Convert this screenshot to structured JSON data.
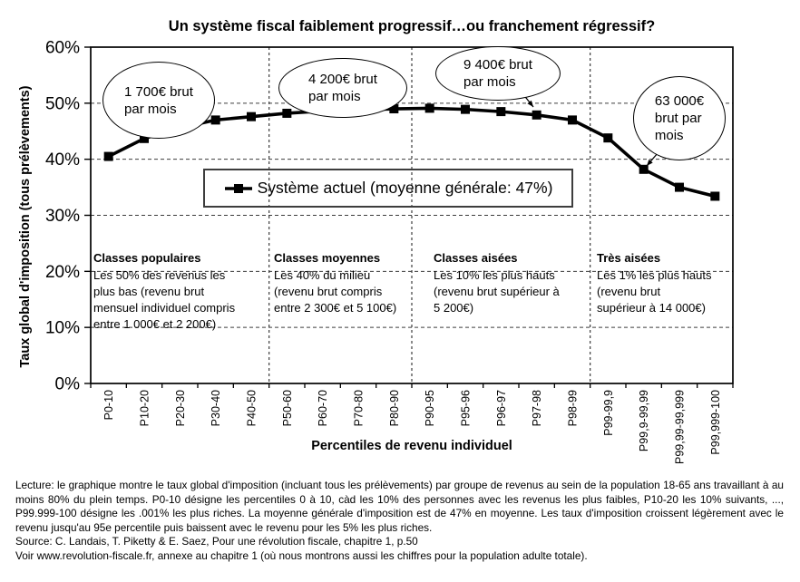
{
  "chart_data": {
    "type": "line",
    "title": "Un système fiscal faiblement progressif…ou franchement régressif?",
    "xlabel": "Percentiles de revenu individuel",
    "ylabel": "Taux global d'imposition (tous prélèvements)",
    "ylim": [
      0,
      60
    ],
    "ytick_step": 10,
    "ytick_suffix": "%",
    "grid": "horizontal dashed every 10%, dashed vertical class separators",
    "legend_position": "inside top-center, boxed",
    "categories": [
      "P0-10",
      "P10-20",
      "P20-30",
      "P30-40",
      "P40-50",
      "P50-60",
      "P60-70",
      "P70-80",
      "P80-90",
      "P90-95",
      "P95-96",
      "P96-97",
      "P97-98",
      "P98-99",
      "P99-99,9",
      "P99,9-99,99",
      "P99,99-99,999",
      "P99,999-100"
    ],
    "series": [
      {
        "name": "Système actuel (moyenne générale: 47%)",
        "marker": "black-square",
        "color": "#000000",
        "values": [
          40.5,
          43.7,
          45.6,
          47.0,
          47.6,
          48.2,
          48.6,
          48.8,
          49.0,
          49.1,
          48.9,
          48.5,
          47.9,
          47.0,
          43.8,
          38.2,
          35.0,
          33.4
        ]
      }
    ],
    "separator_boundaries": [
      5,
      9,
      14
    ]
  },
  "legend_label": "Système actuel (moyenne générale: 47%)",
  "callouts": [
    {
      "text": "1 700€ brut\npar mois",
      "points_to": "P20-30"
    },
    {
      "text": "4 200€ brut\npar mois",
      "points_to": "P80-90"
    },
    {
      "text": "9 400€ brut\npar mois",
      "points_to": "P97-98"
    },
    {
      "text": "63 000€\nbrut par\nmois",
      "points_to": "P99,9-99,99"
    }
  ],
  "class_blocks": [
    {
      "header": "Classes populaires",
      "body": "Les 50% des revenus les\nplus bas (revenu brut\nmensuel individuel compris\nentre 1 000€ et 2 200€)"
    },
    {
      "header": "Classes moyennes",
      "body": "Les 40% du milieu\n(revenu brut compris\nentre 2 300€ et 5 100€)"
    },
    {
      "header": "Classes aisées",
      "body": "Les 10% les plus hauts\n(revenu brut supérieur à\n5 200€)"
    },
    {
      "header": "Très aisées",
      "body": "Les 1% les plus hauts\n(revenu brut\nsupérieur à 14 000€)"
    }
  ],
  "notes": {
    "lecture": "Lecture: le graphique montre le taux global d'imposition (incluant tous les prélèvements) par groupe de revenus au sein de la population 18-65 ans travaillant à au moins 80% du plein temps. P0-10 désigne les percentiles 0 à 10, càd les 10% des personnes avec les revenus les plus faibles, P10-20 les 10% suivants, ..., P99.999-100 désigne les .001% les plus riches. La moyenne générale d'imposition est de 47% en moyenne. Les taux d'imposition croissent légèrement avec le revenu jusqu'au 95e percentile puis baissent avec le revenu pour les 5% les plus riches.",
    "source": "Source: C. Landais, T. Piketty & E. Saez, Pour une révolution fiscale, chapitre 1, p.50",
    "voir": "Voir www.revolution-fiscale.fr, annexe au chapitre 1 (où nous montrons aussi les chiffres pour la population adulte totale)."
  },
  "colors": {
    "series": "#000000",
    "grid": "#3c3c3c",
    "border": "#000000",
    "legend_border": "#3d3d3d",
    "background": "#ffffff"
  }
}
